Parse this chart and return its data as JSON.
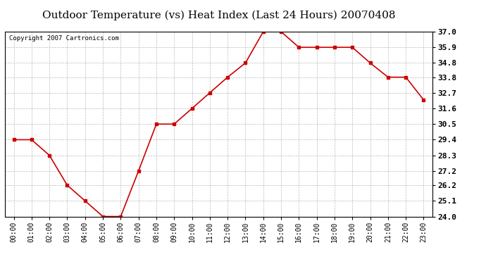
{
  "title": "Outdoor Temperature (vs) Heat Index (Last 24 Hours) 20070408",
  "copyright_text": "Copyright 2007 Cartronics.com",
  "x_labels": [
    "00:00",
    "01:00",
    "02:00",
    "03:00",
    "04:00",
    "05:00",
    "06:00",
    "07:00",
    "08:00",
    "09:00",
    "10:00",
    "11:00",
    "12:00",
    "13:00",
    "14:00",
    "15:00",
    "16:00",
    "17:00",
    "18:00",
    "19:00",
    "20:00",
    "21:00",
    "22:00",
    "23:00"
  ],
  "y_values": [
    29.4,
    29.4,
    28.3,
    26.2,
    25.1,
    24.0,
    24.0,
    27.2,
    30.5,
    30.5,
    31.6,
    32.7,
    33.8,
    34.8,
    37.0,
    37.0,
    35.9,
    35.9,
    35.9,
    35.9,
    34.8,
    33.8,
    33.8,
    32.2
  ],
  "line_color": "#cc0000",
  "marker": "s",
  "marker_size": 2.5,
  "ylim_min": 24.0,
  "ylim_max": 37.0,
  "ytick_values": [
    24.0,
    25.1,
    26.2,
    27.2,
    28.3,
    29.4,
    30.5,
    31.6,
    32.7,
    33.8,
    34.8,
    35.9,
    37.0
  ],
  "background_color": "#ffffff",
  "grid_color": "#bbbbbb",
  "title_fontsize": 11,
  "axis_label_fontsize": 7,
  "copyright_fontsize": 6.5
}
